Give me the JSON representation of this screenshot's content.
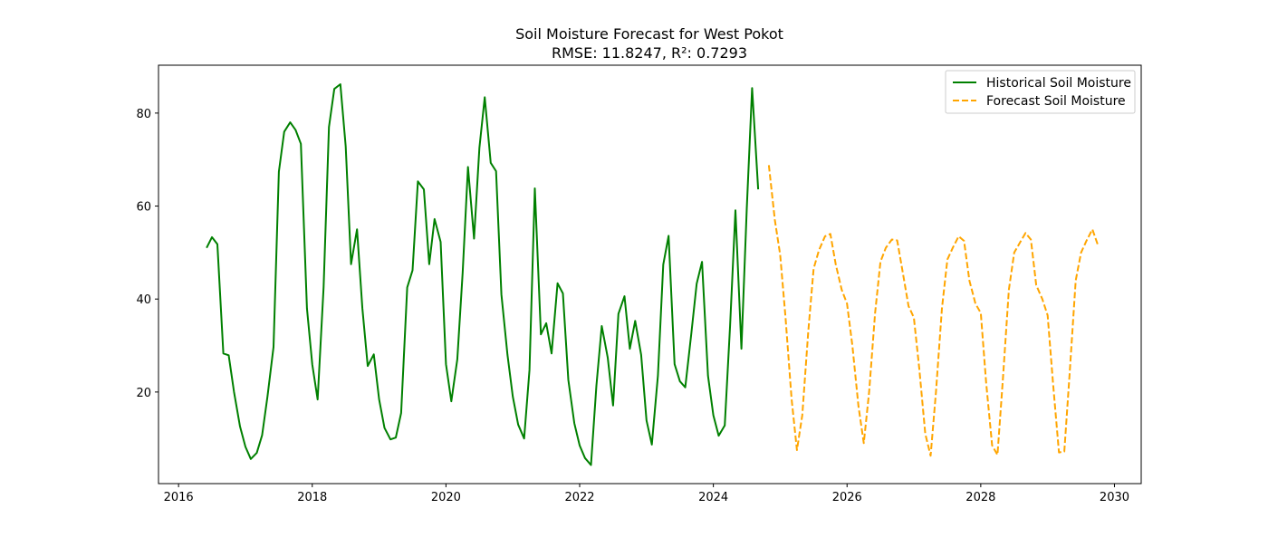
{
  "chart_data": {
    "type": "line",
    "title": "Soil Moisture Forecast for West Pokot",
    "subtitle": "RMSE: 11.8247, R²: 0.7293",
    "xlabel": "",
    "ylabel": "",
    "xlim": [
      2015.7,
      2030.4
    ],
    "ylim": [
      0.3,
      90.3
    ],
    "x_ticks": [
      2016,
      2018,
      2020,
      2022,
      2024,
      2026,
      2028,
      2030
    ],
    "x_tick_labels": [
      "2016",
      "2018",
      "2020",
      "2022",
      "2024",
      "2026",
      "2028",
      "2030"
    ],
    "y_ticks": [
      20,
      40,
      60,
      80
    ],
    "y_tick_labels": [
      "20",
      "40",
      "60",
      "80"
    ],
    "grid": false,
    "legend_position": "top-right",
    "series": [
      {
        "name": "Historical Soil Moisture",
        "color": "#008000",
        "style": "solid",
        "x": [
          2016.42,
          2016.5,
          2016.58,
          2016.67,
          2016.75,
          2016.83,
          2016.92,
          2017.0,
          2017.08,
          2017.17,
          2017.25,
          2017.33,
          2017.42,
          2017.5,
          2017.58,
          2017.67,
          2017.75,
          2017.83,
          2017.92,
          2018.0,
          2018.08,
          2018.17,
          2018.25,
          2018.33,
          2018.42,
          2018.5,
          2018.58,
          2018.67,
          2018.75,
          2018.83,
          2018.92,
          2019.0,
          2019.08,
          2019.17,
          2019.25,
          2019.33,
          2019.42,
          2019.5,
          2019.58,
          2019.67,
          2019.75,
          2019.83,
          2019.92,
          2020.0,
          2020.08,
          2020.17,
          2020.25,
          2020.33,
          2020.42,
          2020.5,
          2020.58,
          2020.67,
          2020.75,
          2020.83,
          2020.92,
          2021.0,
          2021.08,
          2021.17,
          2021.25,
          2021.33,
          2021.42,
          2021.5,
          2021.58,
          2021.67,
          2021.75,
          2021.83,
          2021.92,
          2022.0,
          2022.08,
          2022.17,
          2022.25,
          2022.33,
          2022.42,
          2022.5,
          2022.58,
          2022.67,
          2022.75,
          2022.83,
          2022.92,
          2023.0,
          2023.08,
          2023.17,
          2023.25,
          2023.33,
          2023.42,
          2023.5,
          2023.58,
          2023.67,
          2023.75,
          2023.83,
          2023.92,
          2024.0,
          2024.08,
          2024.17,
          2024.25,
          2024.33,
          2024.42,
          2024.5,
          2024.58,
          2024.67
        ],
        "y": [
          51,
          53.3,
          51.8,
          28.3,
          27.9,
          20,
          12.6,
          8.2,
          5.6,
          6.9,
          10.7,
          19,
          29.7,
          67.4,
          76,
          78,
          76.4,
          73.4,
          38,
          25.9,
          18.4,
          42.6,
          77,
          85.2,
          86.2,
          72.8,
          47.5,
          55,
          38,
          25.6,
          28.1,
          18.4,
          12.3,
          9.8,
          10.2,
          15.5,
          42.5,
          46.2,
          65.3,
          63.6,
          47.5,
          57.2,
          52.3,
          26,
          18,
          27,
          45.6,
          68.4,
          53,
          72.5,
          83.4,
          69.3,
          67.5,
          41,
          28,
          19,
          13,
          10,
          24.7,
          63.8,
          32.4,
          34.8,
          28.3,
          43.4,
          41.2,
          22.6,
          13.3,
          8.5,
          5.8,
          4.3,
          21.4,
          34.2,
          27.4,
          17.1,
          36.8,
          40.6,
          29.3,
          35.3,
          28,
          13.9,
          8.7,
          23.5,
          47.4,
          53.6,
          26,
          22.3,
          21,
          32.6,
          43.3,
          48,
          23.5,
          15,
          10.6,
          12.8,
          34.3,
          59.1,
          29.3,
          59.4,
          85.4,
          63.6
        ]
      },
      {
        "name": "Forecast Soil Moisture",
        "color": "#FFA500",
        "style": "dashed",
        "x": [
          2024.83,
          2024.92,
          2025.0,
          2025.08,
          2025.17,
          2025.25,
          2025.33,
          2025.42,
          2025.5,
          2025.58,
          2025.67,
          2025.75,
          2025.83,
          2025.92,
          2026.0,
          2026.08,
          2026.17,
          2026.25,
          2026.33,
          2026.42,
          2026.5,
          2026.58,
          2026.67,
          2026.75,
          2026.83,
          2026.92,
          2027.0,
          2027.08,
          2027.17,
          2027.25,
          2027.33,
          2027.42,
          2027.5,
          2027.58,
          2027.67,
          2027.75,
          2027.83,
          2027.92,
          2028.0,
          2028.08,
          2028.17,
          2028.25,
          2028.33,
          2028.42,
          2028.5,
          2028.58,
          2028.67,
          2028.75,
          2028.83,
          2028.92,
          2029.0,
          2029.08,
          2029.17,
          2029.25,
          2029.33,
          2029.42,
          2029.5,
          2029.58,
          2029.67,
          2029.75
        ],
        "y": [
          68.8,
          57,
          49.5,
          36,
          18.5,
          7.5,
          15,
          33,
          46.5,
          50.5,
          53.5,
          54,
          47.5,
          42,
          39,
          30,
          17,
          9,
          20,
          37,
          48,
          51,
          52.8,
          52.6,
          46,
          38.5,
          36,
          25,
          11,
          6.3,
          20,
          38,
          48.5,
          51,
          53.5,
          52.5,
          44,
          39,
          37,
          22,
          8.5,
          6.5,
          22.5,
          42,
          50,
          52,
          54.2,
          52.8,
          43,
          40,
          36.5,
          22,
          7,
          7.2,
          24,
          44,
          50,
          52.5,
          55,
          51.7
        ]
      }
    ]
  }
}
